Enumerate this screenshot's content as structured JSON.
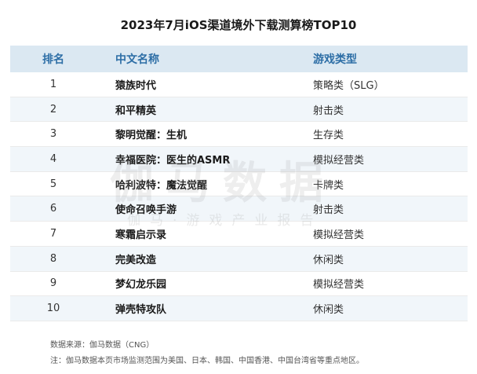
{
  "title": "2023年7月iOS渠道境外下载测算榜TOP10",
  "table": {
    "headers": {
      "rank": "排名",
      "name": "中文名称",
      "type": "游戏类型"
    },
    "rows": [
      {
        "rank": "1",
        "name": "猿族时代",
        "type": "策略类（SLG）"
      },
      {
        "rank": "2",
        "name": "和平精英",
        "type": "射击类"
      },
      {
        "rank": "3",
        "name": "黎明觉醒：生机",
        "type": "生存类"
      },
      {
        "rank": "4",
        "name": "幸福医院：医生的ASMR",
        "type": "模拟经营类"
      },
      {
        "rank": "5",
        "name": "哈利波特：魔法觉醒",
        "type": "卡牌类"
      },
      {
        "rank": "6",
        "name": "使命召唤手游",
        "type": "射击类"
      },
      {
        "rank": "7",
        "name": "寒霜启示录",
        "type": "模拟经营类"
      },
      {
        "rank": "8",
        "name": "完美改造",
        "type": "休闲类"
      },
      {
        "rank": "9",
        "name": "梦幻龙乐园",
        "type": "模拟经营类"
      },
      {
        "rank": "10",
        "name": "弹壳特攻队",
        "type": "休闲类"
      }
    ]
  },
  "watermark": {
    "main": "伽马数据",
    "sub": "伽马·游戏产业报告"
  },
  "footnotes": {
    "source": "数据来源：伽马数据（CNG）",
    "note": "注：伽马数据本页市场监测范围为美国、日本、韩国、中国香港、中国台湾省等重点地区。"
  },
  "colors": {
    "header_bg": "#dbe8f2",
    "header_text": "#2d6ea6",
    "stripe_bg": "#f1f6fa"
  }
}
